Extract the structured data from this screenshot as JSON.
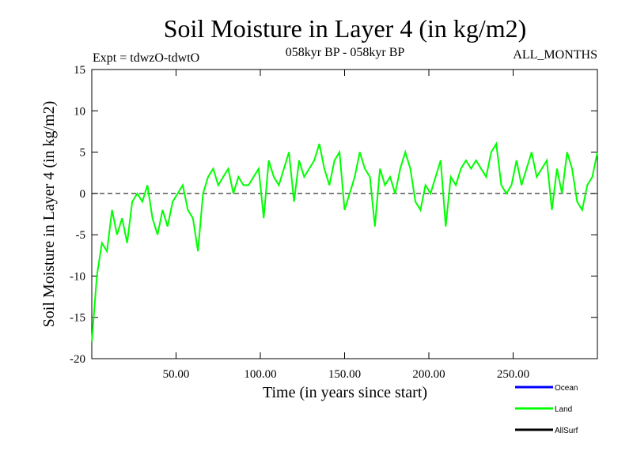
{
  "chart_data": {
    "type": "line",
    "title": "Soil Moisture in Layer 4 (in kg/m2)",
    "subtitle_left": "Expt = tdwzO-tdwtO",
    "subtitle_center": "058kyr BP - 058kyr BP",
    "subtitle_right": "ALL_MONTHS",
    "xlabel": "Time (in years since start)",
    "ylabel": "Soil Moisture in Layer 4 (in kg/m2)",
    "xlim": [
      0,
      300
    ],
    "ylim": [
      -20,
      15
    ],
    "x_ticks": [
      50,
      100,
      150,
      200,
      250
    ],
    "x_tick_labels": [
      "50.00",
      "100.00",
      "150.00",
      "200.00",
      "250.00"
    ],
    "y_ticks": [
      -20,
      -15,
      -10,
      -5,
      0,
      5,
      10,
      15
    ],
    "y_tick_labels": [
      "-20",
      "-15",
      "-10",
      "-5",
      "0",
      "5",
      "10",
      "15"
    ],
    "reference_line": {
      "y": 0,
      "style": "dashed"
    },
    "grid": false,
    "legend_position": "bottom-right",
    "legend": [
      {
        "name": "Ocean",
        "color": "#0000ff"
      },
      {
        "name": "Land",
        "color": "#00ff00"
      },
      {
        "name": "AllSurf",
        "color": "#000000"
      }
    ],
    "series": [
      {
        "name": "Land",
        "color": "#00ff00",
        "x": [
          0,
          3,
          6,
          9,
          12,
          15,
          18,
          21,
          24,
          27,
          30,
          33,
          36,
          39,
          42,
          45,
          48,
          51,
          54,
          57,
          60,
          63,
          66,
          69,
          72,
          75,
          78,
          81,
          84,
          87,
          90,
          93,
          96,
          99,
          102,
          105,
          108,
          111,
          114,
          117,
          120,
          123,
          126,
          129,
          132,
          135,
          138,
          141,
          144,
          147,
          150,
          153,
          156,
          159,
          162,
          165,
          168,
          171,
          174,
          177,
          180,
          183,
          186,
          189,
          192,
          195,
          198,
          201,
          204,
          207,
          210,
          213,
          216,
          219,
          222,
          225,
          228,
          231,
          234,
          237,
          240,
          243,
          246,
          249,
          252,
          255,
          258,
          261,
          264,
          267,
          270,
          273,
          276,
          279,
          282,
          285,
          288,
          291,
          294,
          297,
          300
        ],
        "y": [
          -18,
          -10,
          -6,
          -7,
          -2,
          -5,
          -3,
          -6,
          -1,
          0,
          -1,
          1,
          -3,
          -5,
          -2,
          -4,
          -1,
          0,
          1,
          -2,
          -3,
          -7,
          0,
          2,
          3,
          1,
          2,
          3,
          0,
          2,
          1,
          1,
          2,
          3,
          -3,
          4,
          2,
          1,
          3,
          5,
          -1,
          4,
          2,
          3,
          4,
          6,
          3,
          1,
          4,
          5,
          -2,
          0,
          2,
          5,
          3,
          2,
          -4,
          3,
          1,
          2,
          0,
          3,
          5,
          3,
          -1,
          -2,
          1,
          0,
          2,
          4,
          -4,
          2,
          1,
          3,
          4,
          3,
          4,
          3,
          2,
          5,
          6,
          1,
          0,
          1,
          4,
          1,
          3,
          5,
          2,
          3,
          4,
          -2,
          3,
          0,
          5,
          3,
          -1,
          -2,
          1,
          2,
          5
        ]
      }
    ]
  }
}
